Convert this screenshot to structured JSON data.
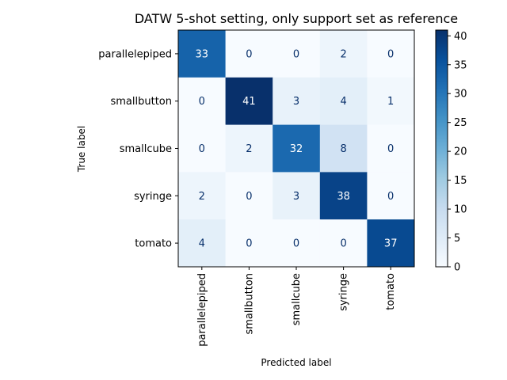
{
  "chart_data": {
    "type": "heatmap",
    "title": "DATW 5-shot setting, only support set as reference",
    "xlabel": "Predicted label",
    "ylabel": "True label",
    "row_labels": [
      "parallelepiped",
      "smallbutton",
      "smallcube",
      "syringe",
      "tomato"
    ],
    "col_labels": [
      "parallelepiped",
      "smallbutton",
      "smallcube",
      "syringe",
      "tomato"
    ],
    "values": [
      [
        33,
        0,
        0,
        2,
        0
      ],
      [
        0,
        41,
        3,
        4,
        1
      ],
      [
        0,
        2,
        32,
        8,
        0
      ],
      [
        2,
        0,
        3,
        38,
        0
      ],
      [
        4,
        0,
        0,
        0,
        37
      ]
    ],
    "colormap": "Blues",
    "value_range": [
      0,
      41
    ],
    "colorbar_ticks": [
      0,
      5,
      10,
      15,
      20,
      25,
      30,
      35,
      40
    ],
    "grid": false
  }
}
